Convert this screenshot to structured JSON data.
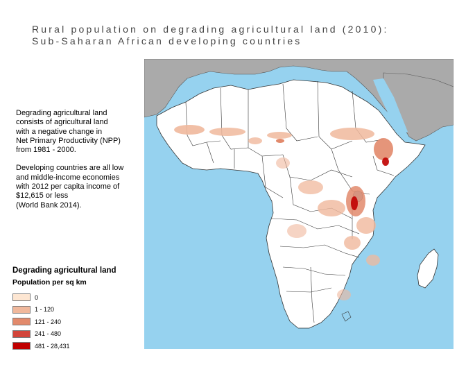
{
  "title": {
    "line1": "Rural population on degrading agricultural land (2010):",
    "line2": "Sub-Saharan African developing countries"
  },
  "description": {
    "para1": "Degrading agricultural land\nconsists of agricultural land\nwith a negative change in\nNet Primary Productivity (NPP)\nfrom 1981 - 2000.",
    "para2": "Developing countries are all low\nand middle-income economies\nwith 2012 per capita income of\n$12,615 or less\n(World Bank 2014)."
  },
  "legend": {
    "title": "Degrading agricultural land",
    "subtitle": "Population per sq km",
    "items": [
      {
        "label": "0",
        "color": "#fde6d2"
      },
      {
        "label": "1 - 120",
        "color": "#f0b89c"
      },
      {
        "label": "121 - 240",
        "color": "#e28a6c"
      },
      {
        "label": "241 - 480",
        "color": "#d2453a"
      },
      {
        "label": "481 - 28,431",
        "color": "#c00000"
      }
    ]
  },
  "colors": {
    "ocean": "#96d2ef",
    "non_ssa_land": "#aaaaaa",
    "ssa_land": "#ffffff",
    "border": "#333333"
  }
}
